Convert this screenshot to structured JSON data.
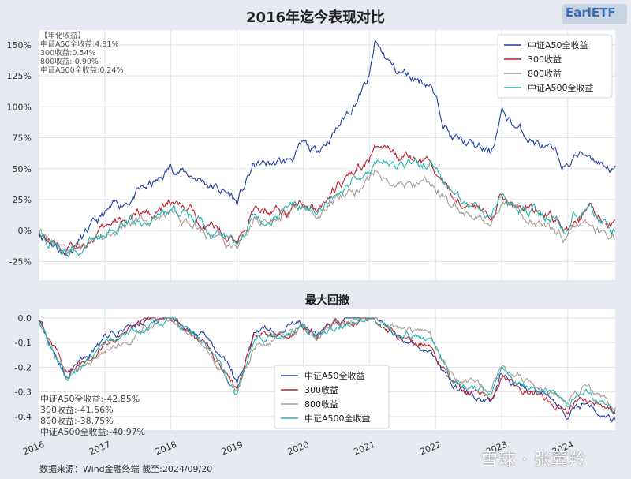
{
  "chart_data": [
    {
      "type": "line",
      "title": "2016年迄今表现对比",
      "ylabel": "",
      "xlabel": "",
      "ylim": [
        -0.4,
        1.62
      ],
      "y_ticks": [
        "-25%",
        "0%",
        "25%",
        "50%",
        "75%",
        "100%",
        "125%",
        "150%"
      ],
      "grid": true,
      "legend_position": "top-right",
      "annotation_title": "【年化收益】",
      "annotations": [
        "中证A50全收益:4.81%",
        "300收益:0.54%",
        "800收益:-0.90%",
        "中证A500全收益:0.24%"
      ],
      "x": [
        "2016",
        "2016-06",
        "2017",
        "2017-05",
        "2017-11",
        "2018",
        "2018-07",
        "2018-12",
        "2019",
        "2019-04",
        "2019-10",
        "2020",
        "2020-03",
        "2020-07",
        "2021",
        "2021-02",
        "2021-06",
        "2021-12",
        "2022",
        "2022-04",
        "2022-11",
        "2023",
        "2023-04",
        "2023-10",
        "2024",
        "2024-02",
        "2024-05",
        "2024-09"
      ],
      "series": [
        {
          "name": "中证A50全收益",
          "color": "#1f3fa0",
          "values": [
            0.0,
            -0.18,
            0.12,
            0.25,
            0.4,
            0.52,
            0.4,
            0.28,
            0.22,
            0.52,
            0.55,
            0.68,
            0.62,
            0.82,
            1.22,
            1.5,
            1.28,
            1.2,
            1.05,
            0.75,
            0.62,
            0.95,
            0.82,
            0.62,
            0.5,
            0.6,
            0.62,
            0.5
          ]
        },
        {
          "name": "300收益",
          "color": "#c0202a",
          "values": [
            0.0,
            -0.17,
            0.0,
            0.1,
            0.15,
            0.22,
            0.08,
            -0.05,
            -0.1,
            0.15,
            0.18,
            0.25,
            0.18,
            0.35,
            0.55,
            0.72,
            0.58,
            0.55,
            0.48,
            0.28,
            0.15,
            0.3,
            0.22,
            0.1,
            0.0,
            0.1,
            0.14,
            0.05
          ]
        },
        {
          "name": "800收益",
          "color": "#a59b93",
          "values": [
            0.0,
            -0.18,
            -0.04,
            0.05,
            0.1,
            0.14,
            0.0,
            -0.15,
            -0.18,
            0.08,
            0.12,
            0.18,
            0.12,
            0.25,
            0.38,
            0.45,
            0.38,
            0.4,
            0.36,
            0.2,
            0.08,
            0.22,
            0.14,
            0.02,
            -0.08,
            0.04,
            0.06,
            -0.08
          ]
        },
        {
          "name": "中证A500全收益",
          "color": "#1fb3b3",
          "values": [
            0.0,
            -0.2,
            -0.02,
            0.08,
            0.12,
            0.18,
            0.04,
            -0.1,
            -0.14,
            0.12,
            0.15,
            0.22,
            0.16,
            0.3,
            0.48,
            0.62,
            0.52,
            0.56,
            0.48,
            0.26,
            0.14,
            0.3,
            0.2,
            0.1,
            0.0,
            0.12,
            0.14,
            0.03
          ]
        }
      ]
    },
    {
      "type": "line",
      "title": "最大回撤",
      "ylim": [
        -0.455,
        0.035
      ],
      "y_ticks": [
        "0.0",
        "-0.1",
        "-0.2",
        "-0.3",
        "-0.4"
      ],
      "x_ticks": [
        "2016",
        "2017",
        "2018",
        "2019",
        "2020",
        "2021",
        "2022",
        "2023",
        "2024"
      ],
      "grid": true,
      "legend_position": "bottom-center",
      "annotations": [
        "中证A50全收益:-42.85%",
        "300收益:-41.56%",
        "800收益:-38.75%",
        "中证A500全收益:-40.97%"
      ],
      "x": [
        "2016",
        "2016-06",
        "2017",
        "2017-05",
        "2017-11",
        "2018",
        "2018-07",
        "2018-12",
        "2019",
        "2019-04",
        "2019-10",
        "2020",
        "2020-03",
        "2020-07",
        "2021",
        "2021-02",
        "2021-06",
        "2021-12",
        "2022",
        "2022-04",
        "2022-11",
        "2023",
        "2023-04",
        "2023-10",
        "2024",
        "2024-02",
        "2024-05",
        "2024-09"
      ],
      "series": [
        {
          "name": "中证A50全收益",
          "color": "#1f3fa0",
          "values": [
            0.0,
            -0.24,
            -0.08,
            -0.04,
            0.0,
            0.0,
            -0.08,
            -0.22,
            -0.28,
            -0.05,
            -0.04,
            -0.02,
            -0.06,
            -0.03,
            0.0,
            0.0,
            -0.07,
            -0.12,
            -0.16,
            -0.28,
            -0.34,
            -0.22,
            -0.27,
            -0.34,
            -0.4,
            -0.36,
            -0.35,
            -0.41
          ]
        },
        {
          "name": "300收益",
          "color": "#c0202a",
          "values": [
            0.0,
            -0.22,
            -0.1,
            -0.06,
            0.0,
            0.0,
            -0.1,
            -0.24,
            -0.3,
            -0.08,
            -0.06,
            -0.04,
            -0.08,
            -0.03,
            0.0,
            0.0,
            -0.07,
            -0.1,
            -0.14,
            -0.26,
            -0.33,
            -0.24,
            -0.28,
            -0.34,
            -0.39,
            -0.35,
            -0.33,
            -0.39
          ]
        },
        {
          "name": "800收益",
          "color": "#a59b93",
          "values": [
            0.0,
            -0.24,
            -0.13,
            -0.09,
            -0.02,
            0.0,
            -0.12,
            -0.27,
            -0.31,
            -0.1,
            -0.07,
            -0.04,
            -0.09,
            -0.03,
            0.0,
            0.0,
            -0.05,
            -0.08,
            -0.12,
            -0.24,
            -0.29,
            -0.2,
            -0.24,
            -0.3,
            -0.36,
            -0.31,
            -0.29,
            -0.36
          ]
        },
        {
          "name": "中证A500全收益",
          "color": "#1fb3b3",
          "values": [
            0.0,
            -0.25,
            -0.11,
            -0.07,
            -0.01,
            0.0,
            -0.11,
            -0.26,
            -0.31,
            -0.09,
            -0.06,
            -0.03,
            -0.08,
            -0.03,
            0.0,
            0.0,
            -0.06,
            -0.09,
            -0.13,
            -0.25,
            -0.31,
            -0.22,
            -0.26,
            -0.32,
            -0.38,
            -0.33,
            -0.31,
            -0.37
          ]
        }
      ]
    }
  ],
  "logo": {
    "text": "EarlETF",
    "icon": "earletf-logo"
  },
  "source_note": "数据来源：Wind金融终端 截至:2024/09/20",
  "watermark": "雪球 · 张翼羚"
}
